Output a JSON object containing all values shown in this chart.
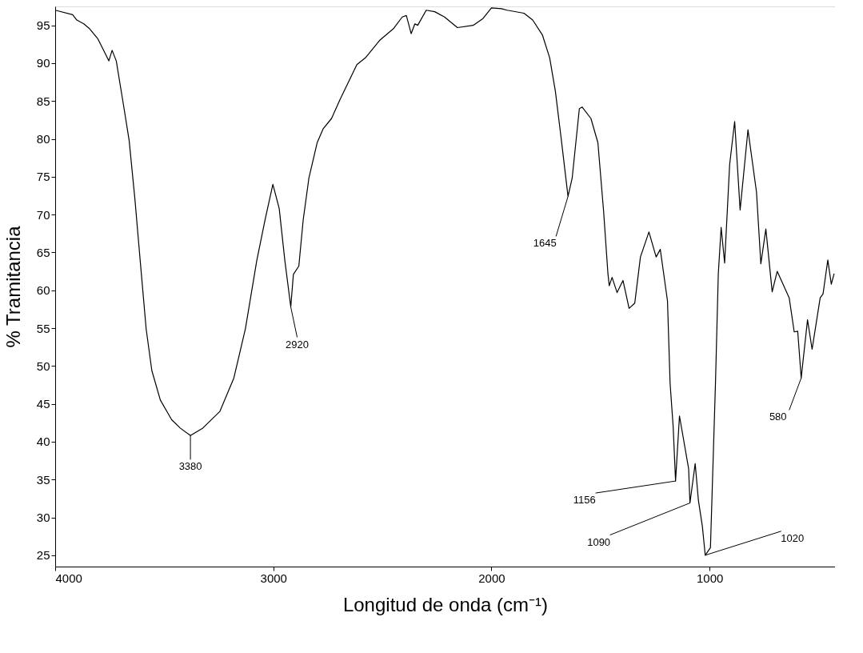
{
  "chart_data": {
    "type": "line",
    "xlabel": "Longitud de onda (cm⁻¹)",
    "ylabel": "% Tramitancia",
    "xlim": [
      4000,
      425
    ],
    "xticks": [
      4000,
      3000,
      2000,
      1000
    ],
    "ylim": [
      23.5,
      97.5
    ],
    "yticks": [
      25,
      30,
      35,
      40,
      45,
      50,
      55,
      60,
      65,
      70,
      75,
      80,
      85,
      90,
      95
    ],
    "grid": false,
    "marker": "none",
    "line_style": "solid",
    "series": [
      {
        "color": "#000000",
        "x": [
          4000,
          3920,
          3901,
          3869,
          3844,
          3804,
          3785,
          3754,
          3739,
          3720,
          3687,
          3661,
          3635,
          3609,
          3583,
          3557,
          3518,
          3466,
          3427,
          3380,
          3323,
          3245,
          3181,
          3128,
          3076,
          3038,
          3002,
          2973,
          2947,
          2920,
          2908,
          2883,
          2863,
          2837,
          2799,
          2772,
          2733,
          2694,
          2617,
          2578,
          2513,
          2448,
          2409,
          2390,
          2368,
          2351,
          2338,
          2299,
          2260,
          2215,
          2156,
          2084,
          2039,
          2000,
          1954,
          1928,
          1851,
          1811,
          1766,
          1733,
          1707,
          1681,
          1649,
          1630,
          1597,
          1584,
          1544,
          1512,
          1486,
          1466,
          1460,
          1447,
          1424,
          1397,
          1369,
          1343,
          1317,
          1278,
          1245,
          1226,
          1193,
          1181,
          1167,
          1156,
          1138,
          1096,
          1090,
          1066,
          1051,
          1033,
          1020,
          996,
          973,
          960,
          947,
          931,
          908,
          885,
          860,
          824,
          785,
          765,
          742,
          713,
          690,
          635,
          612,
          596,
          580,
          551,
          530,
          493,
          480,
          458,
          442,
          429
        ],
        "values": [
          97.0,
          96.4,
          95.7,
          95.2,
          94.6,
          93.2,
          92.1,
          90.3,
          91.7,
          90.3,
          84.5,
          79.8,
          72.2,
          63.5,
          54.9,
          49.4,
          45.5,
          42.9,
          41.8,
          40.8,
          41.8,
          44.0,
          48.4,
          54.9,
          63.9,
          69.3,
          74.0,
          70.8,
          63.9,
          57.8,
          62.1,
          63.2,
          69.3,
          74.8,
          79.5,
          81.3,
          82.7,
          85.2,
          89.8,
          90.7,
          93.0,
          94.6,
          96.1,
          96.3,
          93.9,
          95.2,
          95.0,
          97.0,
          96.8,
          96.1,
          94.7,
          95.0,
          95.9,
          97.3,
          97.2,
          97.0,
          96.6,
          95.7,
          93.7,
          90.7,
          86.3,
          80.2,
          72.4,
          74.8,
          84.0,
          84.2,
          82.7,
          79.5,
          70.5,
          62.2,
          60.6,
          61.7,
          59.7,
          61.3,
          57.6,
          58.3,
          64.4,
          67.7,
          64.4,
          65.4,
          58.6,
          47.7,
          42.0,
          34.8,
          43.4,
          36.4,
          31.9,
          37.1,
          32.2,
          28.8,
          25.0,
          26.0,
          47.7,
          62.2,
          68.3,
          63.6,
          76.6,
          82.3,
          70.6,
          81.2,
          73.0,
          63.5,
          68.1,
          59.8,
          62.5,
          59.0,
          54.5,
          54.6,
          48.4,
          56.1,
          52.2,
          59.0,
          59.5,
          64.0,
          60.8,
          62.2
        ]
      }
    ],
    "annotations": [
      {
        "text": "3380",
        "x": 3380,
        "y": 40.8
      },
      {
        "text": "2920",
        "x": 2920,
        "y": 57.8
      },
      {
        "text": "1645",
        "x": 1649,
        "y": 72.4
      },
      {
        "text": "1156",
        "x": 1156,
        "y": 34.8
      },
      {
        "text": "1090",
        "x": 1090,
        "y": 31.9
      },
      {
        "text": "1020",
        "x": 1020,
        "y": 25.0
      },
      {
        "text": "580",
        "x": 580,
        "y": 48.4
      }
    ]
  }
}
